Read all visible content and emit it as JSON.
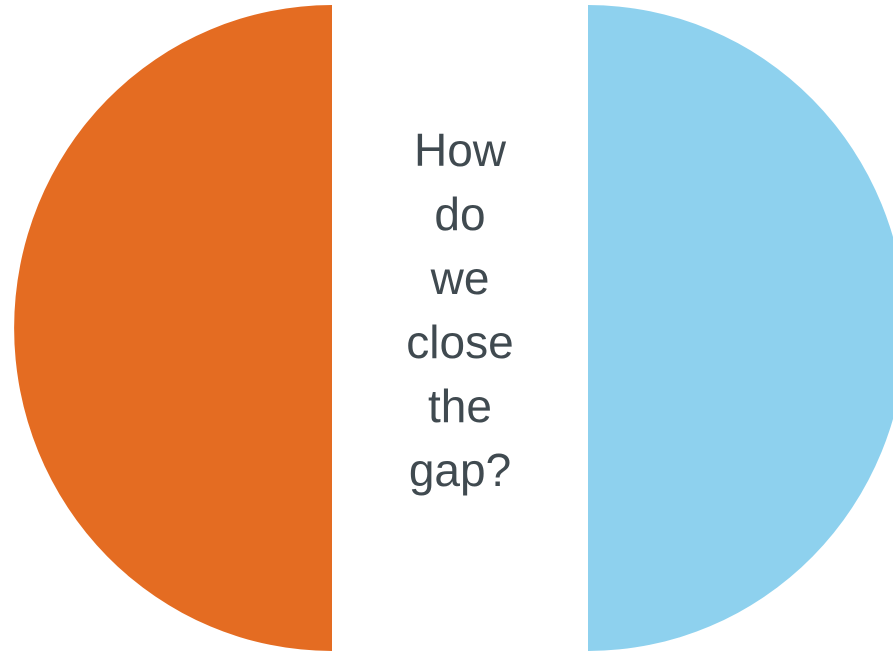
{
  "diagram": {
    "left_color": "#e46c22",
    "right_color": "#8ed1ee",
    "text_color": "#404a50",
    "question_lines": [
      "How",
      "do",
      "we",
      "close",
      "the",
      "gap?"
    ]
  }
}
